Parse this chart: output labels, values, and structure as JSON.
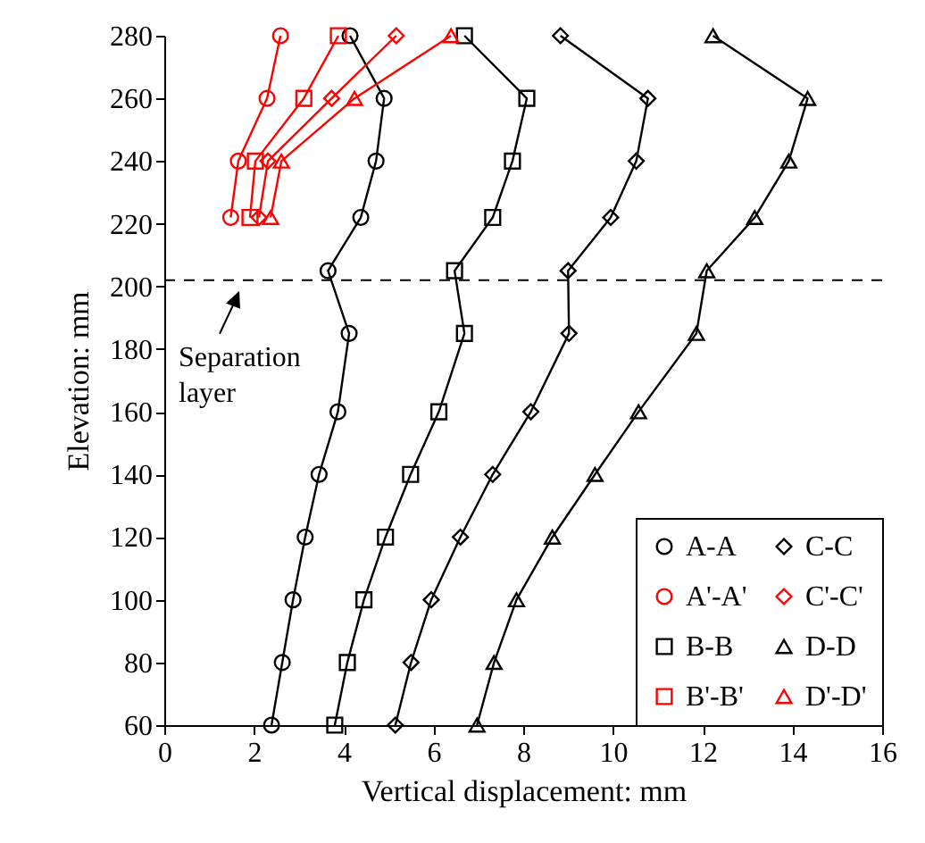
{
  "chart_data": {
    "type": "line",
    "xlabel": "Vertical displacement: mm",
    "ylabel": "Elevation: mm",
    "xlim": [
      0,
      16
    ],
    "xticks": [
      0,
      2,
      4,
      6,
      8,
      10,
      12,
      14,
      16
    ],
    "ylim": [
      60,
      280
    ],
    "yticks": [
      60,
      80,
      100,
      120,
      140,
      160,
      180,
      200,
      220,
      240,
      260,
      280
    ],
    "grid": false,
    "legend": "bottom right",
    "series": [
      {
        "name": "A-A",
        "color": "#000000",
        "marker": "circle",
        "x": [
          2.39,
          2.63,
          2.87,
          3.14,
          3.45,
          3.87,
          4.12,
          3.65,
          4.38,
          4.72,
          4.9,
          4.14
        ],
        "values": [
          60,
          80,
          100,
          120,
          140,
          160,
          185,
          205,
          222,
          240,
          260,
          280
        ]
      },
      {
        "name": "A'-A'",
        "color": "#ff0000",
        "marker": "circle",
        "x": [
          1.48,
          1.65,
          2.29,
          2.59
        ],
        "values": [
          222,
          240,
          260,
          280
        ]
      },
      {
        "name": "B-B",
        "color": "#000000",
        "marker": "square",
        "x": [
          3.8,
          4.08,
          4.45,
          4.93,
          5.49,
          6.12,
          6.69,
          6.47,
          7.32,
          7.76,
          8.08,
          6.69
        ],
        "values": [
          60,
          80,
          100,
          120,
          140,
          160,
          185,
          205,
          222,
          240,
          260,
          280
        ]
      },
      {
        "name": "B'-B'",
        "color": "#ff0000",
        "marker": "square",
        "x": [
          1.91,
          2.03,
          3.11,
          3.88
        ],
        "values": [
          222,
          240,
          260,
          280
        ]
      },
      {
        "name": "C-C",
        "color": "#000000",
        "marker": "diamond",
        "x": [
          5.15,
          5.5,
          5.95,
          6.6,
          7.32,
          8.17,
          9.02,
          9.0,
          9.95,
          10.52,
          10.78,
          8.83
        ],
        "values": [
          60,
          80,
          100,
          120,
          140,
          160,
          185,
          205,
          222,
          240,
          260,
          280
        ]
      },
      {
        "name": "C'-C'",
        "color": "#ff0000",
        "marker": "diamond",
        "x": [
          2.11,
          2.31,
          3.73,
          5.17
        ],
        "values": [
          222,
          240,
          260,
          280
        ]
      },
      {
        "name": "D-D",
        "color": "#000000",
        "marker": "triangle",
        "x": [
          6.97,
          7.35,
          7.85,
          8.65,
          9.6,
          10.57,
          11.86,
          12.09,
          13.16,
          13.92,
          14.34,
          12.23
        ],
        "values": [
          60,
          80,
          100,
          120,
          140,
          160,
          185,
          205,
          222,
          240,
          260,
          280
        ]
      },
      {
        "name": "D'-D'",
        "color": "#ff0000",
        "marker": "triangle",
        "x": [
          2.37,
          2.61,
          4.24,
          6.39
        ],
        "values": [
          222,
          240,
          260,
          280
        ]
      }
    ],
    "ref_lines": [
      {
        "axis": "y",
        "value": 202,
        "color": "#000000",
        "line_style": "dashed"
      }
    ],
    "annotations": [
      "Separation layer"
    ]
  }
}
